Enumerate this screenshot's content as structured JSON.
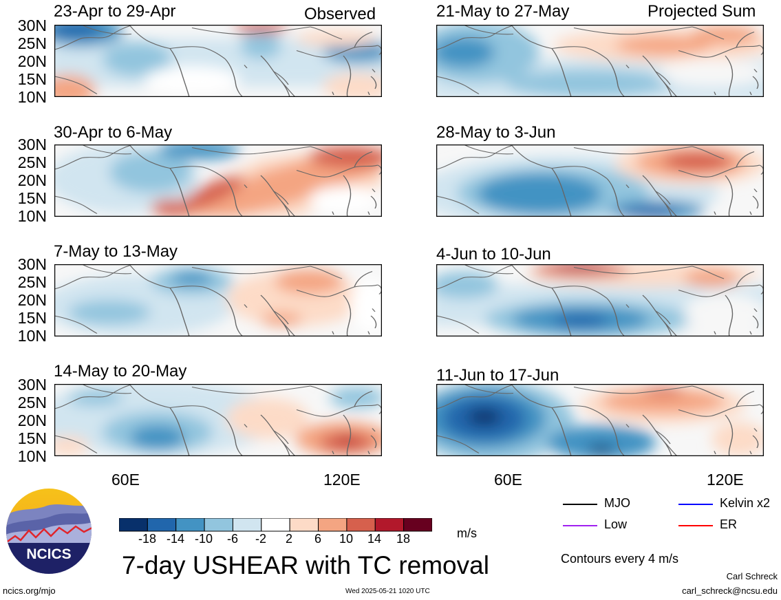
{
  "headers": {
    "left": "Observed",
    "right": "Projected Sum"
  },
  "left_panels": [
    {
      "title": "23-Apr to 29-Apr"
    },
    {
      "title": "30-Apr to 6-May"
    },
    {
      "title": "7-May to 13-May"
    },
    {
      "title": "14-May to 20-May"
    }
  ],
  "right_panels": [
    {
      "title": "21-May to 27-May"
    },
    {
      "title": "28-May to 3-Jun"
    },
    {
      "title": "4-Jun to 10-Jun"
    },
    {
      "title": "11-Jun to 17-Jun"
    }
  ],
  "lat_labels": [
    "30N",
    "25N",
    "20N",
    "15N",
    "10N"
  ],
  "lon_labels": [
    "60E",
    "120E"
  ],
  "colorbar": {
    "colors": [
      "#08306b",
      "#2166ac",
      "#4393c3",
      "#92c5de",
      "#d1e5f0",
      "#ffffff",
      "#fddbc7",
      "#f4a582",
      "#d6604d",
      "#b2182b",
      "#67001f"
    ],
    "ticks": [
      "-18",
      "-14",
      "-10",
      "-6",
      "-2",
      "2",
      "6",
      "10",
      "14",
      "18"
    ],
    "units": "m/s"
  },
  "legend": [
    {
      "label": "MJO",
      "color": "#000000"
    },
    {
      "label": "Kelvin x2",
      "color": "#0000ff"
    },
    {
      "label": "Low",
      "color": "#a020f0"
    },
    {
      "label": "ER",
      "color": "#ff0000"
    }
  ],
  "contours_note": "Contours every 4 m/s",
  "main_title": "7-day USHEAR with TC removal",
  "logo_text": "NCICS",
  "footer": {
    "url": "ncics.org/mjo",
    "timestamp": "Wed 2025-05-21 1020 UTC",
    "author": "Carl Schreck",
    "email": "carl_schreck@ncsu.edu"
  }
}
